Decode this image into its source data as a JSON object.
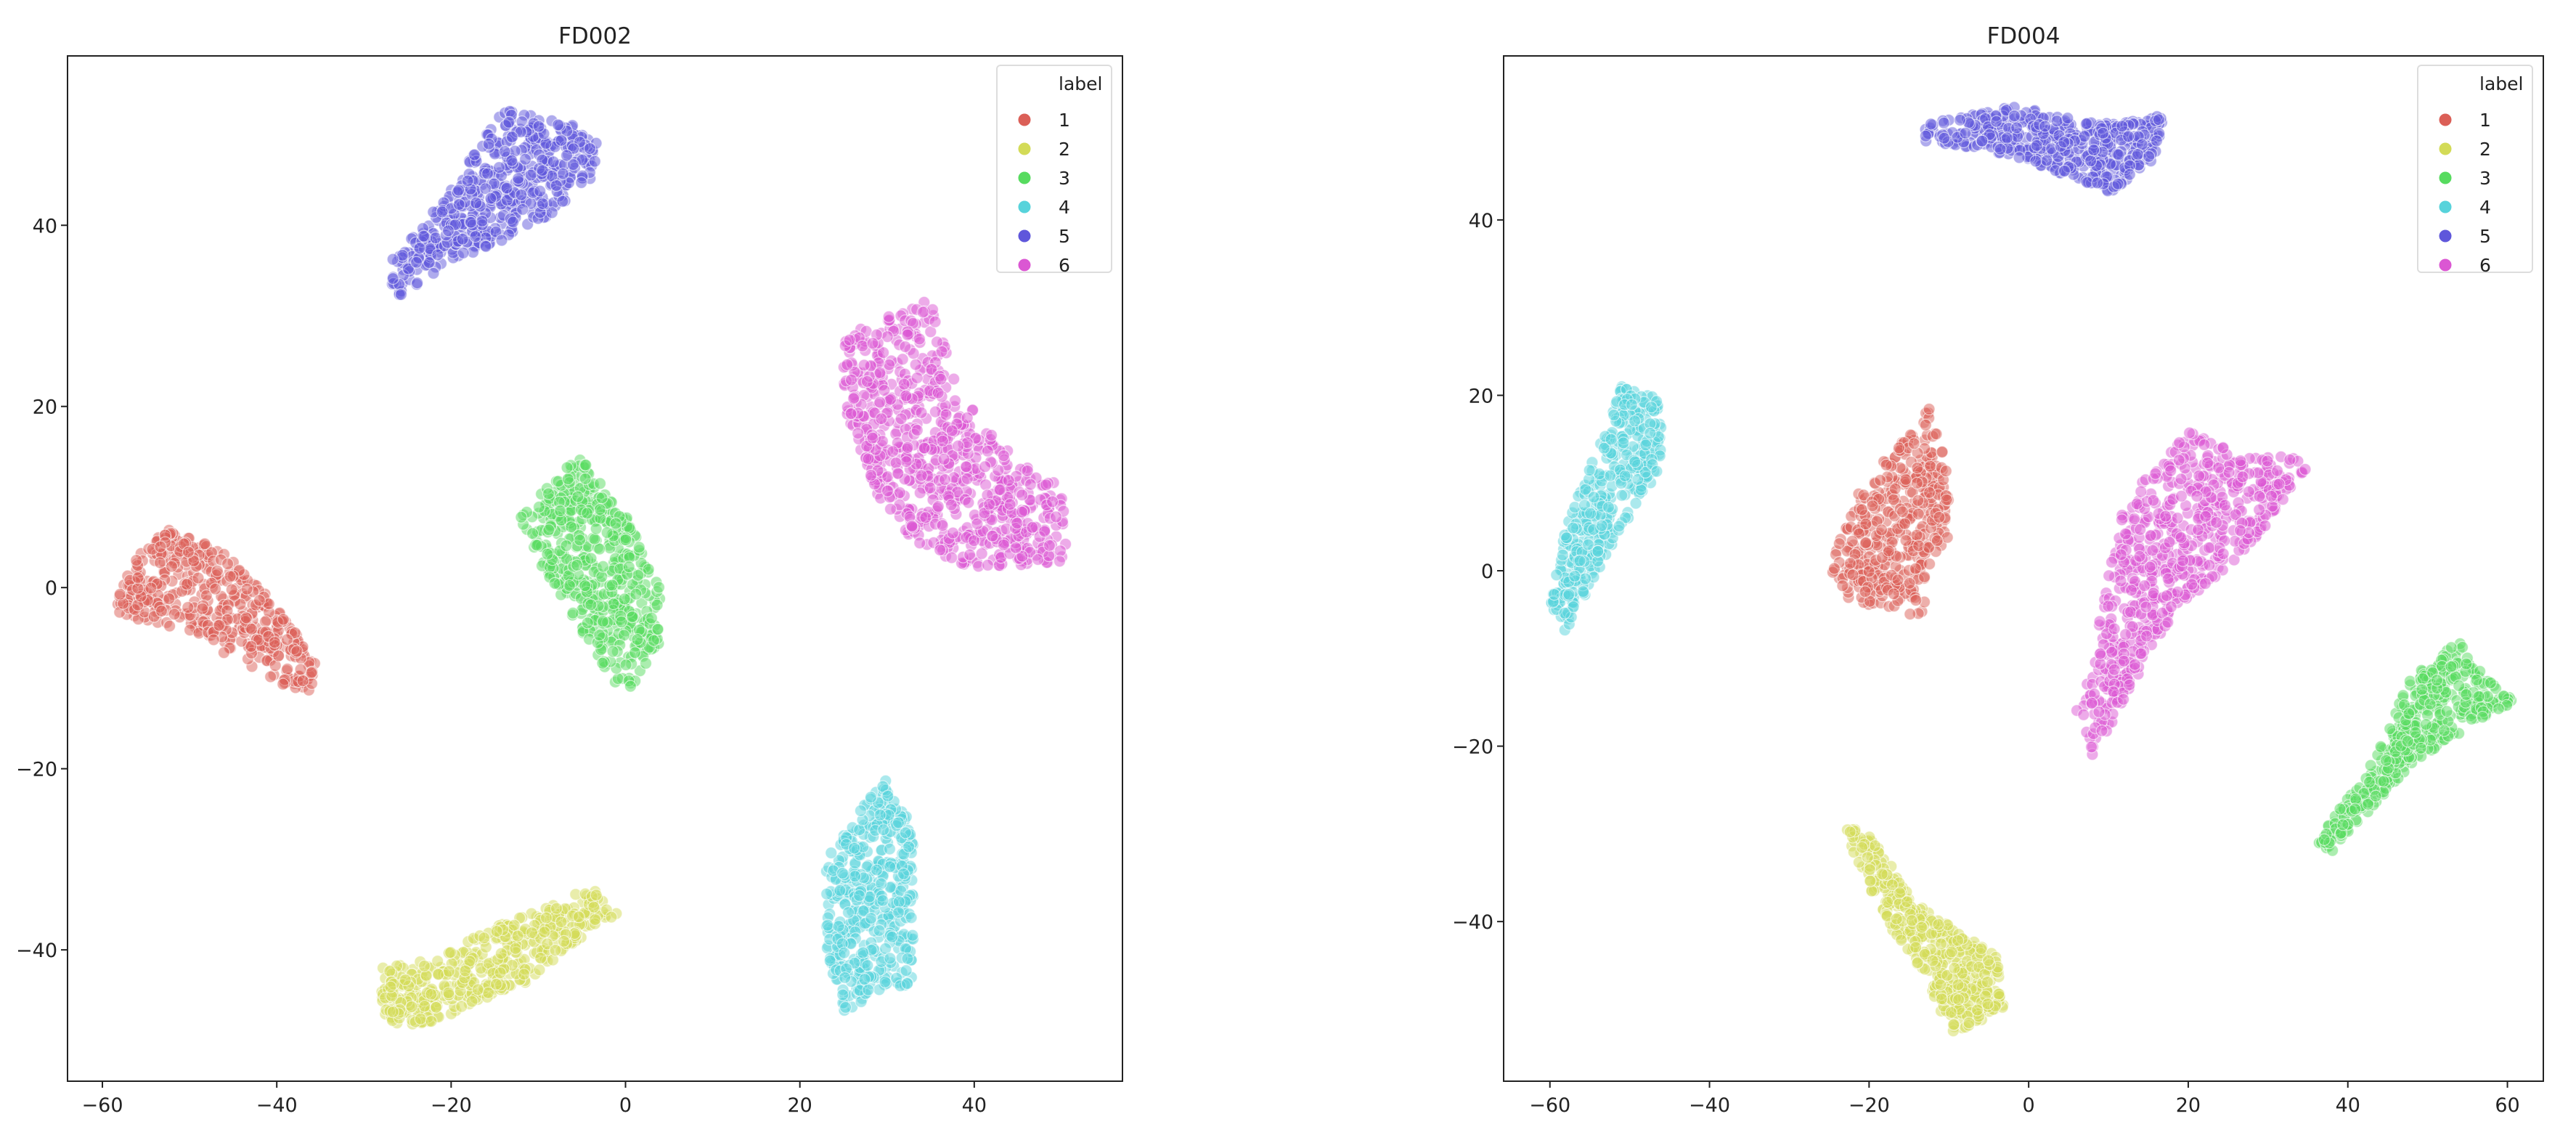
{
  "chart_data": [
    {
      "type": "scatter",
      "title": "FD002",
      "xlabel": "",
      "ylabel": "",
      "xlim": [
        -64,
        57
      ],
      "ylim": [
        -54.5,
        58.7
      ],
      "xticks": [
        -60,
        -40,
        -20,
        0,
        20,
        40
      ],
      "yticks": [
        -40,
        -20,
        0,
        20,
        40
      ],
      "grid": false,
      "legend": {
        "title": "label",
        "placement": "top-right"
      },
      "series": [
        {
          "name": "1",
          "color": "#db5f57",
          "approx_points": 450,
          "region": [
            [
              -59,
              -2
            ],
            [
              -54,
              7
            ],
            [
              -46,
              4
            ],
            [
              -40,
              -2
            ],
            [
              -35,
              -9
            ],
            [
              -36,
              -12
            ],
            [
              -41,
              -10
            ],
            [
              -50,
              -5
            ],
            [
              -58,
              -3
            ]
          ]
        },
        {
          "name": "2",
          "color": "#d3db57",
          "approx_points": 450,
          "region": [
            [
              -28,
              -42
            ],
            [
              -22,
              -41
            ],
            [
              -14,
              -37
            ],
            [
              -8,
              -35
            ],
            [
              -4,
              -33
            ],
            [
              -1,
              -36
            ],
            [
              -4,
              -38
            ],
            [
              -12,
              -44
            ],
            [
              -17,
              -46
            ],
            [
              -25,
              -49
            ],
            [
              -28,
              -47
            ]
          ]
        },
        {
          "name": "3",
          "color": "#57db5f",
          "approx_points": 500,
          "region": [
            [
              -12,
              8
            ],
            [
              -5,
              15
            ],
            [
              0,
              8
            ],
            [
              4,
              0
            ],
            [
              4,
              -6
            ],
            [
              0,
              -12
            ],
            [
              -3,
              -8
            ],
            [
              -8,
              0
            ],
            [
              -12,
              6
            ]
          ]
        },
        {
          "name": "4",
          "color": "#57d3db",
          "approx_points": 450,
          "region": [
            [
              23,
              -30
            ],
            [
              30,
              -20
            ],
            [
              33,
              -27
            ],
            [
              33,
              -44
            ],
            [
              30,
              -44
            ],
            [
              25,
              -47
            ],
            [
              23,
              -40
            ]
          ]
        },
        {
          "name": "5",
          "color": "#5f57db",
          "approx_points": 500,
          "region": [
            [
              -27,
              34
            ],
            [
              -26,
              32
            ],
            [
              -20,
              36
            ],
            [
              -10,
              40
            ],
            [
              -3,
              46
            ],
            [
              -3,
              50
            ],
            [
              -6,
              51
            ],
            [
              -14,
              53
            ],
            [
              -20,
              44
            ],
            [
              -27,
              36
            ]
          ]
        },
        {
          "name": "6",
          "color": "#db57d3",
          "approx_points": 750,
          "region": [
            [
              25,
              28
            ],
            [
              35,
              32
            ],
            [
              38,
              22
            ],
            [
              44,
              15
            ],
            [
              50,
              11
            ],
            [
              51,
              3
            ],
            [
              40,
              2
            ],
            [
              33,
              5
            ],
            [
              29,
              10
            ],
            [
              25,
              20
            ]
          ]
        }
      ]
    },
    {
      "type": "scatter",
      "title": "FD004",
      "xlabel": "",
      "ylabel": "",
      "xlim": [
        -65.8,
        64.5
      ],
      "ylim": [
        -58.2,
        58.7
      ],
      "xticks": [
        -60,
        -40,
        -20,
        0,
        20,
        40,
        60
      ],
      "yticks": [
        -40,
        -20,
        0,
        20,
        40
      ],
      "grid": false,
      "legend": {
        "title": "label",
        "placement": "top-right"
      },
      "series": [
        {
          "name": "1",
          "color": "#db5f57",
          "approx_points": 400,
          "region": [
            [
              -26,
              -3
            ],
            [
              -22,
              8
            ],
            [
              -16,
              15
            ],
            [
              -12,
              19
            ],
            [
              -10,
              10
            ],
            [
              -10,
              4
            ],
            [
              -13,
              0
            ],
            [
              -13,
              -6
            ],
            [
              -18,
              -4
            ],
            [
              -22,
              -4
            ],
            [
              -24,
              -1
            ]
          ]
        },
        {
          "name": "2",
          "color": "#d3db57",
          "approx_points": 450,
          "region": [
            [
              -23,
              -29
            ],
            [
              -20,
              -30
            ],
            [
              -14,
              -38
            ],
            [
              -9,
              -41
            ],
            [
              -4,
              -44
            ],
            [
              -3,
              -50
            ],
            [
              -10,
              -53
            ],
            [
              -13,
              -46
            ],
            [
              -18,
              -40
            ],
            [
              -22,
              -32
            ]
          ]
        },
        {
          "name": "3",
          "color": "#57db5f",
          "approx_points": 450,
          "region": [
            [
              36,
              -31
            ],
            [
              43,
              -22
            ],
            [
              48,
              -12
            ],
            [
              54,
              -8
            ],
            [
              57,
              -12
            ],
            [
              61,
              -15
            ],
            [
              55,
              -18
            ],
            [
              48,
              -22
            ],
            [
              38,
              -32
            ]
          ]
        },
        {
          "name": "4",
          "color": "#57d3db",
          "approx_points": 400,
          "region": [
            [
              -60,
              -4
            ],
            [
              -58,
              -7
            ],
            [
              -54,
              0
            ],
            [
              -46,
              12
            ],
            [
              -46,
              20
            ],
            [
              -51,
              21
            ],
            [
              -54,
              14
            ],
            [
              -58,
              5
            ]
          ]
        },
        {
          "name": "5",
          "color": "#5f57db",
          "approx_points": 450,
          "region": [
            [
              -13,
              51
            ],
            [
              -7,
              52
            ],
            [
              -2,
              53
            ],
            [
              10,
              51
            ],
            [
              17,
              52
            ],
            [
              16,
              47
            ],
            [
              10,
              43
            ],
            [
              5,
              45
            ],
            [
              -5,
              48
            ],
            [
              -13,
              49
            ]
          ]
        },
        {
          "name": "6",
          "color": "#db57d3",
          "approx_points": 650,
          "region": [
            [
              7,
              -14
            ],
            [
              12,
              8
            ],
            [
              20,
              16
            ],
            [
              27,
              13
            ],
            [
              33,
              13
            ],
            [
              35,
              12
            ],
            [
              28,
              3
            ],
            [
              18,
              -5
            ],
            [
              12,
              -15
            ],
            [
              8,
              -21
            ],
            [
              6,
              -16
            ]
          ]
        }
      ]
    }
  ]
}
